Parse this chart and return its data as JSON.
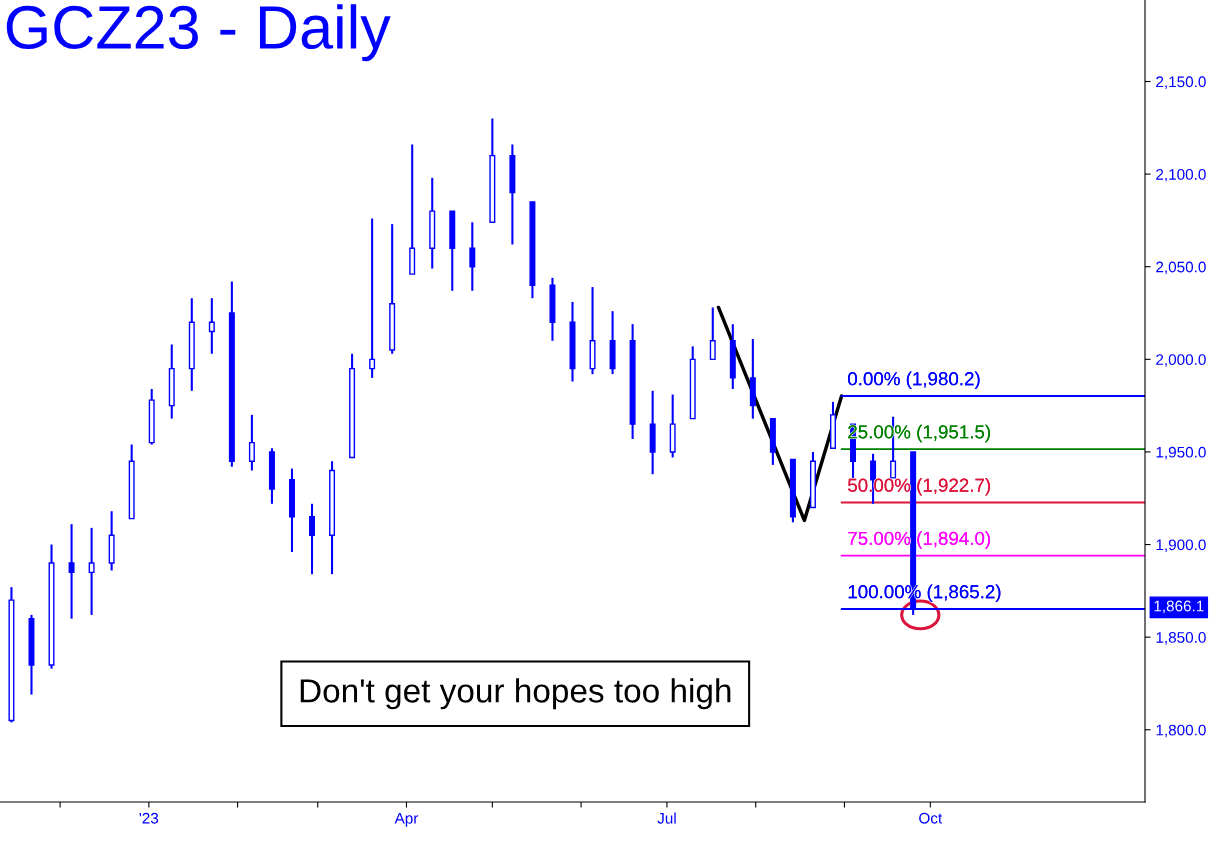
{
  "chart_data": {
    "type": "candlestick",
    "title": "GCZ23 - Daily",
    "color": "#0000ff",
    "x": [
      "2022-11-14",
      "2022-11-21",
      "2022-11-28",
      "2022-12-05",
      "2022-12-12",
      "2022-12-19",
      "2022-12-26",
      "2023-01-02",
      "2023-01-09",
      "2023-01-16",
      "2023-01-23",
      "2023-01-30",
      "2023-02-06",
      "2023-02-13",
      "2023-02-20",
      "2023-02-27",
      "2023-03-06",
      "2023-03-13",
      "2023-03-20",
      "2023-03-27",
      "2023-04-03",
      "2023-04-10",
      "2023-04-17",
      "2023-04-24",
      "2023-05-01",
      "2023-05-08",
      "2023-05-15",
      "2023-05-22",
      "2023-05-29",
      "2023-06-05",
      "2023-06-12",
      "2023-06-19",
      "2023-06-26",
      "2023-07-03",
      "2023-07-10",
      "2023-07-17",
      "2023-07-24",
      "2023-07-31",
      "2023-08-07",
      "2023-08-14",
      "2023-08-21",
      "2023-08-28",
      "2023-09-04",
      "2023-09-11",
      "2023-09-18",
      "2023-09-25"
    ],
    "ohlc": [
      [
        1805,
        1877,
        1804,
        1870
      ],
      [
        1860,
        1862,
        1819,
        1835
      ],
      [
        1835,
        1900,
        1833,
        1890
      ],
      [
        1890,
        1911,
        1860,
        1885
      ],
      [
        1885,
        1909,
        1862,
        1890
      ],
      [
        1890,
        1918,
        1886,
        1905
      ],
      [
        1914,
        1954,
        1914,
        1945
      ],
      [
        1955,
        1984,
        1954,
        1978
      ],
      [
        1975,
        2008,
        1968,
        1995
      ],
      [
        1995,
        2033,
        1983,
        2020
      ],
      [
        2015,
        2033,
        2003,
        2020
      ],
      [
        2025,
        2042,
        1942,
        1945
      ],
      [
        1945,
        1970,
        1940,
        1955
      ],
      [
        1950,
        1952,
        1922,
        1930
      ],
      [
        1935,
        1941,
        1896,
        1915
      ],
      [
        1915,
        1922,
        1884,
        1905
      ],
      [
        1905,
        1945,
        1884,
        1940
      ],
      [
        1947,
        2003,
        1947,
        1995
      ],
      [
        1995,
        2076,
        1990,
        2000
      ],
      [
        2005,
        2073,
        2003,
        2030
      ],
      [
        2046,
        2116,
        2046,
        2060
      ],
      [
        2060,
        2098,
        2049,
        2080
      ],
      [
        2080,
        2080,
        2037,
        2060
      ],
      [
        2060,
        2074,
        2037,
        2050
      ],
      [
        2074,
        2130,
        2074,
        2110
      ],
      [
        2110,
        2116,
        2062,
        2090
      ],
      [
        2085,
        2085,
        2033,
        2040
      ],
      [
        2040,
        2044,
        2010,
        2020
      ],
      [
        2020,
        2031,
        1988,
        1995
      ],
      [
        1995,
        2039,
        1992,
        2010
      ],
      [
        2010,
        2026,
        1992,
        1995
      ],
      [
        2010,
        2019,
        1957,
        1965
      ],
      [
        1965,
        1983,
        1938,
        1950
      ],
      [
        1950,
        1981,
        1947,
        1965
      ],
      [
        1968,
        2007,
        1968,
        2000
      ],
      [
        2000,
        2028,
        2000,
        2010
      ],
      [
        2010,
        2019,
        1984,
        1990
      ],
      [
        1990,
        2011,
        1968,
        1975
      ],
      [
        1968,
        1968,
        1943,
        1950
      ],
      [
        1946,
        1946,
        1912,
        1915
      ],
      [
        1920,
        1950,
        1920,
        1945
      ],
      [
        1952,
        1977,
        1952,
        1970
      ],
      [
        1965,
        1965,
        1936,
        1945
      ],
      [
        1945,
        1949,
        1922,
        1935
      ],
      [
        1936,
        1969,
        1936,
        1945
      ],
      [
        1950,
        1950,
        1862,
        1866.1
      ]
    ],
    "series": [
      {
        "type": "line",
        "color": "#000000",
        "x": [
          "2023-07-19",
          "2023-08-18",
          "2023-08-31"
        ],
        "values": [
          2028,
          1913,
          1980.2
        ]
      },
      {
        "type": "line",
        "color": "#0000ff",
        "x": [
          "2023-08-31",
          "2023-12-15"
        ],
        "values": [
          1980.2,
          1980.2
        ]
      },
      {
        "type": "line",
        "color": "#008000",
        "x": [
          "2023-08-31",
          "2023-12-15"
        ],
        "values": [
          1951.5,
          1951.5
        ]
      },
      {
        "type": "line",
        "color": "#dc143c",
        "x": [
          "2023-08-31",
          "2023-12-15"
        ],
        "values": [
          1922.7,
          1922.7
        ]
      },
      {
        "type": "line",
        "color": "#ff00ff",
        "x": [
          "2023-08-31",
          "2023-12-15"
        ],
        "values": [
          1894.0,
          1894.0
        ]
      },
      {
        "type": "line",
        "color": "#0000ff",
        "x": [
          "2023-08-31",
          "2023-12-15"
        ],
        "values": [
          1865.2,
          1865.2
        ]
      }
    ],
    "annotations": [
      {
        "text": "0.00% (1,980.2)",
        "x": "2023-09-02",
        "y": 1980.2
      },
      {
        "text": "25.00% (1,951.5)",
        "x": "2023-09-02",
        "y": 1951.5
      },
      {
        "text": "50.00% (1,922.7)",
        "x": "2023-09-02",
        "y": 1922.7
      },
      {
        "text": "75.00% (1,894.0)",
        "x": "2023-09-02",
        "y": 1894.0
      },
      {
        "text": "100.00% (1,865.2)",
        "x": "2023-09-02",
        "y": 1865.2
      },
      "1,866.1",
      "Don't get your hopes too high"
    ],
    "xlim": [
      "2022-11-10",
      "2023-12-15"
    ],
    "xticks": [
      {
        "value": "2022-12-01",
        "label": null
      },
      {
        "value": "2023-01-01",
        "label": "'23"
      },
      {
        "value": "2023-02-01",
        "label": null
      },
      {
        "value": "2023-03-01",
        "label": null
      },
      {
        "value": "2023-04-01",
        "label": "Apr"
      },
      {
        "value": "2023-05-01",
        "label": null
      },
      {
        "value": "2023-06-01",
        "label": null
      },
      {
        "value": "2023-07-01",
        "label": "Jul"
      },
      {
        "value": "2023-08-01",
        "label": null
      },
      {
        "value": "2023-09-01",
        "label": null
      },
      {
        "value": "2023-10-01",
        "label": "Oct"
      }
    ],
    "ylim": [
      1761,
      2194
    ],
    "yticks": [
      {
        "value": 1800,
        "label": "1,800.0"
      },
      {
        "value": 1850,
        "label": "1,850.0"
      },
      {
        "value": 1900,
        "label": "1,900.0"
      },
      {
        "value": 1950,
        "label": "1,950.0"
      },
      {
        "value": 2000,
        "label": "2,000.0"
      },
      {
        "value": 2050,
        "label": "2,050.0"
      },
      {
        "value": 2100,
        "label": "2,100.0"
      },
      {
        "value": 2150,
        "label": "2,150.0"
      }
    ],
    "grid": false
  }
}
